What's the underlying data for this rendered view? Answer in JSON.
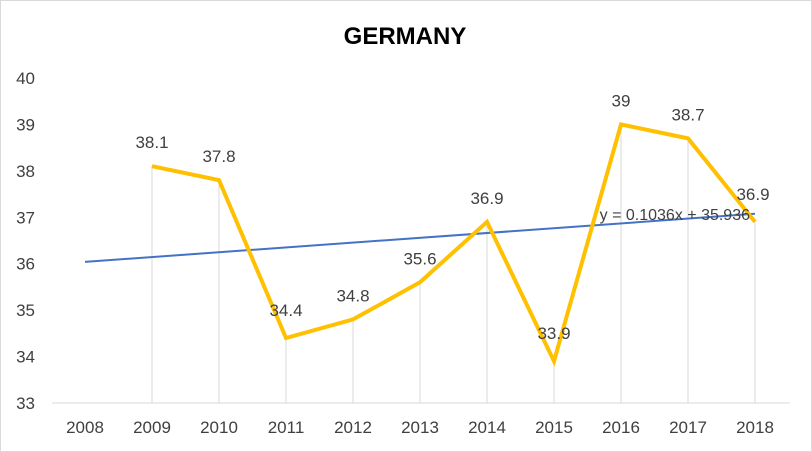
{
  "chart_data": {
    "type": "line",
    "title": "GERMANY",
    "xlabel": "",
    "ylabel": "",
    "categories": [
      "2008",
      "2009",
      "2010",
      "2011",
      "2012",
      "2013",
      "2014",
      "2015",
      "2016",
      "2017",
      "2018"
    ],
    "series": [
      {
        "values": [
          null,
          38.1,
          37.8,
          34.4,
          34.8,
          35.6,
          36.9,
          33.9,
          39,
          38.7,
          36.9
        ],
        "labels": [
          "",
          "38.1",
          "37.8",
          "34.4",
          "34.8",
          "35.6",
          "36.9",
          "33.9",
          "39",
          "38.7",
          "36.9"
        ],
        "color": "#FFC000"
      }
    ],
    "trendline": {
      "type": "linear",
      "slope": 0.1036,
      "intercept": 35.936,
      "equation": "y = 0.1036x + 35.936",
      "color": "#4472C4"
    },
    "ylim": [
      33,
      40
    ],
    "yticks": [
      "33",
      "34",
      "35",
      "36",
      "37",
      "38",
      "39",
      "40"
    ],
    "drop_lines": true,
    "drop_line_color": "#d9d9d9",
    "grid": false,
    "legend": "none"
  }
}
